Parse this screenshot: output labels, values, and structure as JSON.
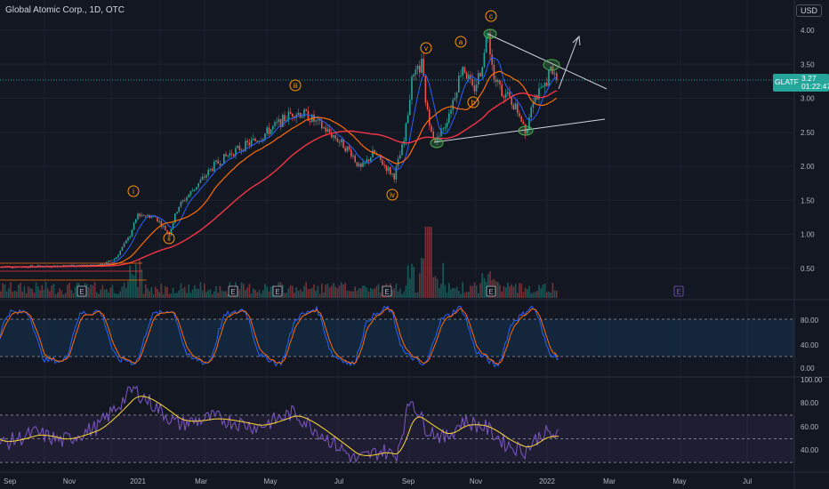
{
  "header": {
    "title": "Global Atomic Corp., 1D, OTC",
    "currency_button": "USD"
  },
  "price_tag": {
    "symbol": "GLATF",
    "price": "3.27",
    "countdown": "01:22:47"
  },
  "price_axis": {
    "ticks": [
      "4.00",
      "3.50",
      "3.00",
      "2.50",
      "2.00",
      "1.50",
      "1.00",
      "0.50"
    ]
  },
  "stoch_axis": {
    "ticks": [
      "80.00",
      "40.00",
      "0.00"
    ]
  },
  "rsi_axis": {
    "ticks": [
      "100.00",
      "80.00",
      "60.00",
      "40.00"
    ]
  },
  "time_axis": {
    "ticks": [
      "Sep",
      "Nov",
      "2021",
      "Mar",
      "May",
      "Jul",
      "Sep",
      "Nov",
      "2022",
      "Mar",
      "May",
      "Jul"
    ]
  },
  "wave_labels": [
    "i",
    "ii",
    "iii",
    "iv",
    "v",
    "a",
    "b",
    "c"
  ],
  "earnings_marker": "E",
  "colors": {
    "background": "#131722",
    "up": "#26a69a",
    "down": "#ef5350",
    "ma_fast": "#2962ff",
    "ma_mid": "#ff6d00",
    "ma_slow": "#f23645",
    "label": "#ff9800",
    "stoch_k": "#2962ff",
    "stoch_d": "#ff6d00",
    "rsi": "#7e57c2",
    "rsi_ma": "#fdd835"
  }
}
